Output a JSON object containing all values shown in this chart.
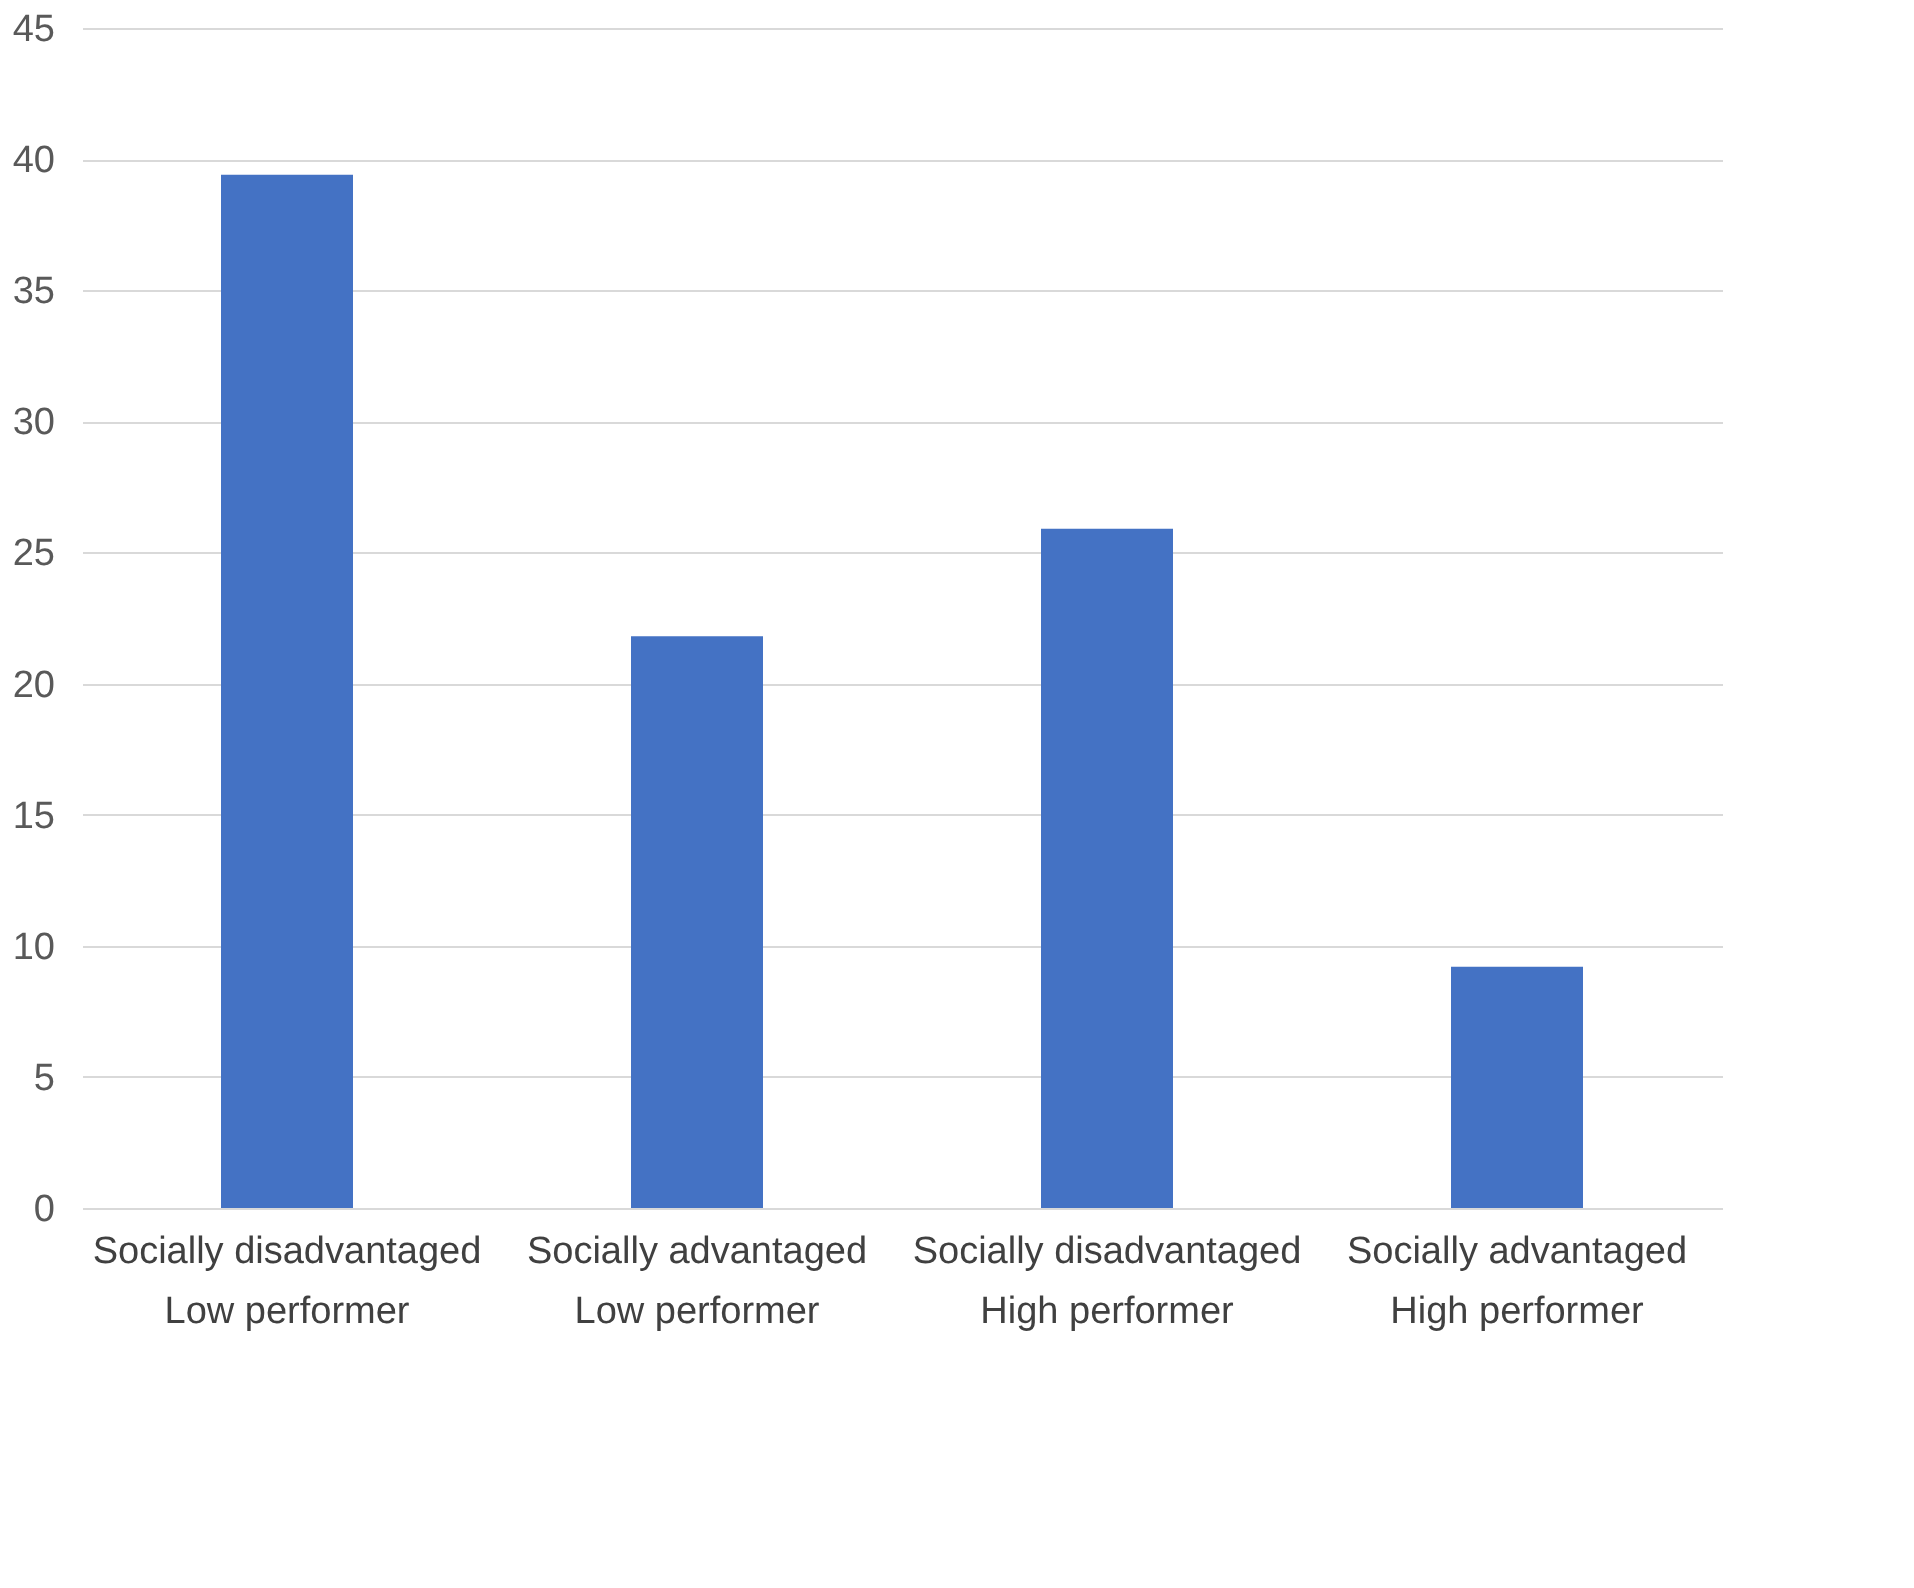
{
  "chart_data": {
    "type": "bar",
    "categories": [
      "Socially disadvantaged\nLow performer",
      "Socially advantaged\nLow performer",
      "Socially disadvantaged\nHigh performer",
      "Socially advantaged\nHigh performer"
    ],
    "values": [
      39.4,
      21.8,
      25.9,
      9.2
    ],
    "color": "#4472c4",
    "ylim": [
      0,
      45
    ],
    "yticks": [
      0,
      5,
      10,
      15,
      20,
      25,
      30,
      35,
      40,
      45
    ],
    "grid": "y"
  }
}
